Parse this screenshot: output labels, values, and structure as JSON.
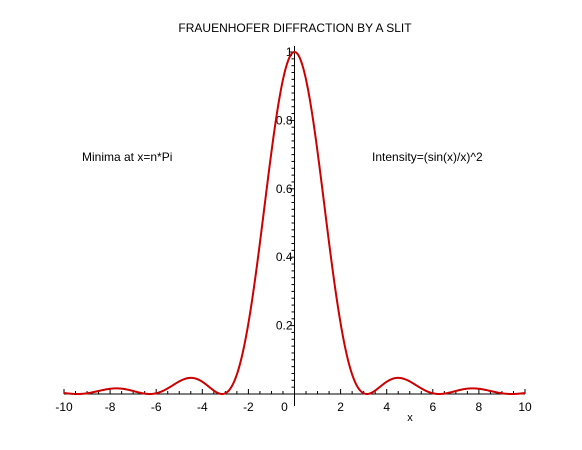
{
  "chart_data": {
    "type": "line",
    "title": "FRAUENHOFER DIFFRACTION BY A SLIT",
    "xlabel": "x",
    "ylabel": "",
    "xlim": [
      -10,
      10
    ],
    "ylim": [
      0,
      1
    ],
    "grid": false,
    "x_ticks": [
      -10,
      -8,
      -6,
      -4,
      -2,
      0,
      2,
      4,
      6,
      8,
      10
    ],
    "x_tick_labels": [
      "-10",
      "-8",
      "-6",
      "-4",
      "-2",
      "0",
      "2",
      "4",
      "6",
      "8",
      "10"
    ],
    "y_ticks": [
      0.2,
      0.4,
      0.6,
      0.8,
      1
    ],
    "y_tick_labels": [
      "0.2",
      "0.4",
      "0.6",
      "0.8",
      "1"
    ],
    "annotations": {
      "left": "Minima at x=n*Pi",
      "right": "Intensity=(sin(x)/x)^2"
    },
    "series": [
      {
        "function": "(sin(x)/x)^2",
        "color": "#cc0000",
        "x": [
          -10,
          -9.5,
          -9,
          -8.5,
          -8,
          -7.725,
          -7.5,
          -7,
          -6.5,
          -6.2832,
          -6,
          -5.5,
          -5,
          -4.493,
          -4,
          -3.5,
          -3.1416,
          -3,
          -2.5,
          -2,
          -1.5,
          -1,
          -0.5,
          0,
          0.5,
          1,
          1.5,
          2,
          2.5,
          3,
          3.1416,
          3.5,
          4,
          4.493,
          5,
          5.5,
          6,
          6.2832,
          6.5,
          7,
          7.5,
          7.725,
          8,
          8.5,
          9,
          9.5,
          10
        ],
        "y": [
          0.003,
          0.0002,
          0.0021,
          0.0087,
          0.0153,
          0.0165,
          0.0156,
          0.0088,
          0.0011,
          0,
          0.0022,
          0.0165,
          0.0368,
          0.0472,
          0.0358,
          0.01,
          0,
          0.0022,
          0.0573,
          0.2067,
          0.4422,
          0.7081,
          0.9194,
          1,
          0.9194,
          0.7081,
          0.4422,
          0.2067,
          0.0573,
          0.0022,
          0,
          0.01,
          0.0358,
          0.0472,
          0.0368,
          0.0165,
          0.0022,
          0,
          0.0011,
          0.0088,
          0.0156,
          0.0165,
          0.0153,
          0.0087,
          0.0021,
          0.0002,
          0.003
        ]
      }
    ]
  }
}
